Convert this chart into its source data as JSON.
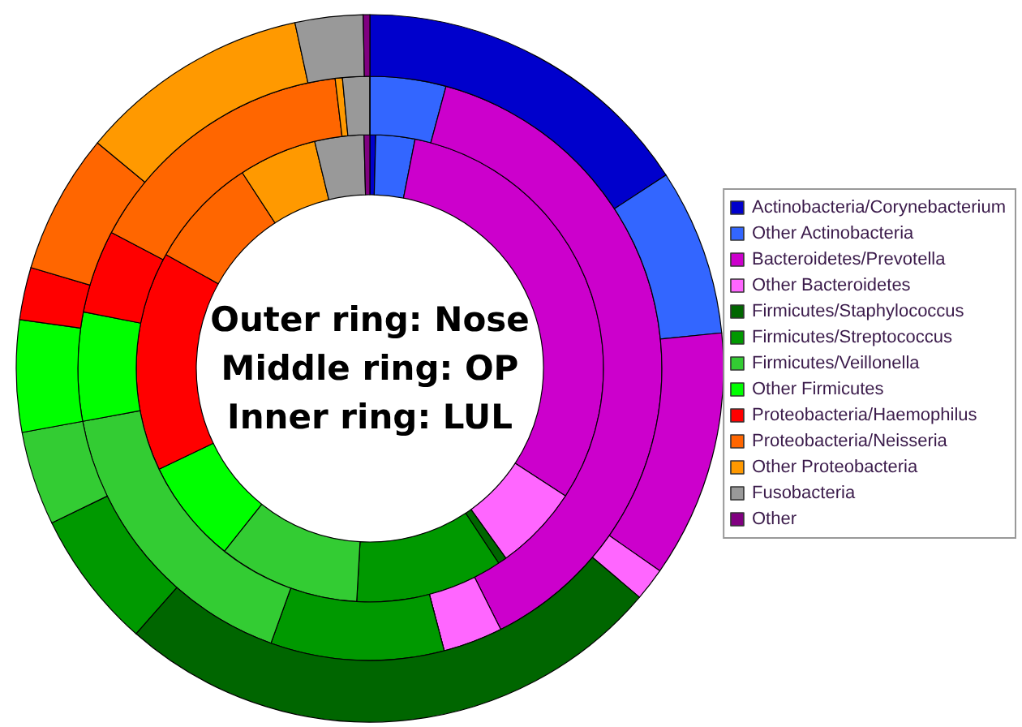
{
  "chart_data": {
    "type": "donut",
    "categories": [
      "Actinobacteria/Corynebacterium",
      "Other Actinobacteria",
      "Bacteroidetes/Prevotella",
      "Other Bacteroidetes",
      "Firmicutes/Staphylococcus",
      "Firmicutes/Streptococcus",
      "Firmicutes/Veillonella",
      "Other Firmicutes",
      "Proteobacteria/Haemophilus",
      "Proteobacteria/Neisseria",
      "Other Proteobacteria",
      "Fusobacteria",
      "Other"
    ],
    "colors": [
      "#0000cc",
      "#3366ff",
      "#cc00cc",
      "#ff66ff",
      "#006600",
      "#009900",
      "#33cc33",
      "#00ff00",
      "#ff0000",
      "#ff6600",
      "#ff9900",
      "#999999",
      "#800080"
    ],
    "series": [
      {
        "values": [
          0.4,
          2.7,
          31.1,
          5.9,
          0.6,
          10.2,
          9.8,
          7.2,
          15.2,
          7.7,
          5.4,
          3.4,
          0.4
        ]
      },
      {
        "values": [
          0,
          4.2,
          38.4,
          3.3,
          0,
          9.6,
          16.6,
          6.0,
          4.6,
          15.4,
          0.4,
          1.5,
          0
        ]
      },
      {
        "values": [
          15.8,
          7.6,
          11.3,
          1.5,
          25.3,
          6.3,
          4.3,
          5.1,
          2.4,
          6.4,
          10.6,
          3.1,
          0.3
        ]
      }
    ],
    "annotations": [
      "Outer ring: Nose",
      "Middle ring: OP",
      "Inner ring: LUL"
    ],
    "legend": "right"
  }
}
